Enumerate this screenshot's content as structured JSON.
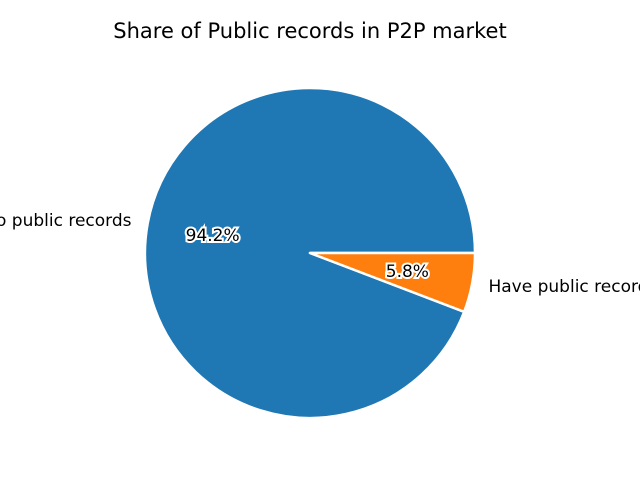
{
  "chart_data": {
    "type": "pie",
    "title": "Share of Public records in P2P market",
    "categories": [
      "No public records",
      "Have public records"
    ],
    "values": [
      94.2,
      5.8
    ],
    "value_labels": [
      "94.2%",
      "5.8%"
    ],
    "colors": [
      "#1f77b4",
      "#ff7f0e"
    ],
    "legend": "none"
  }
}
